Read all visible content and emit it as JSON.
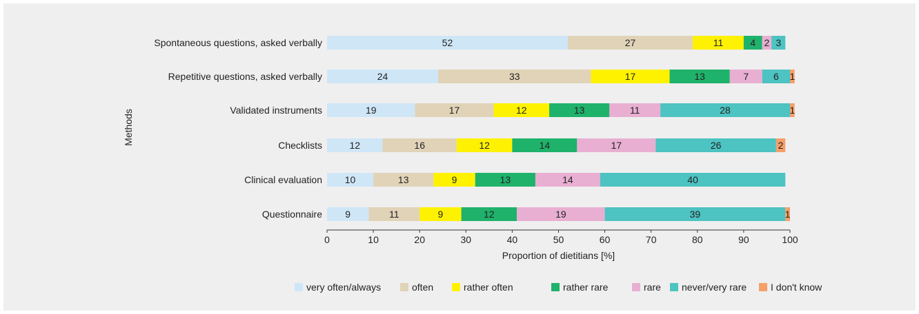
{
  "chart_data": {
    "type": "bar",
    "orientation": "horizontal",
    "stacked": true,
    "title": "",
    "xlabel": "Proportion of dietitians [%]",
    "ylabel": "Methods",
    "xlim": [
      0,
      100
    ],
    "x_ticks": [
      0,
      10,
      20,
      30,
      40,
      50,
      60,
      70,
      80,
      90,
      100
    ],
    "grid": false,
    "legend_position": "bottom",
    "categories": [
      "Spontaneous questions, asked verbally",
      "Repetitive questions, asked verbally",
      "Validated instruments",
      "Checklists",
      "Clinical evaluation",
      "Questionnaire"
    ],
    "series": [
      {
        "name": "very often/always",
        "color": "#cfe6f7",
        "values": [
          52,
          24,
          19,
          12,
          10,
          9
        ]
      },
      {
        "name": "often",
        "color": "#e1d3b8",
        "values": [
          27,
          33,
          17,
          16,
          13,
          11
        ]
      },
      {
        "name": "rather often",
        "color": "#fff200",
        "values": [
          11,
          17,
          12,
          12,
          9,
          9
        ]
      },
      {
        "name": "rather rare",
        "color": "#1fb26b",
        "values": [
          4,
          13,
          13,
          14,
          13,
          12
        ]
      },
      {
        "name": "rare",
        "color": "#e8afd2",
        "values": [
          2,
          7,
          11,
          17,
          14,
          19
        ]
      },
      {
        "name": "never/very rare",
        "color": "#4dc3c2",
        "values": [
          3,
          6,
          28,
          26,
          40,
          39
        ]
      },
      {
        "name": "I don't know",
        "color": "#f5a06a",
        "values": [
          0,
          1,
          1,
          2,
          0,
          1
        ]
      }
    ]
  }
}
